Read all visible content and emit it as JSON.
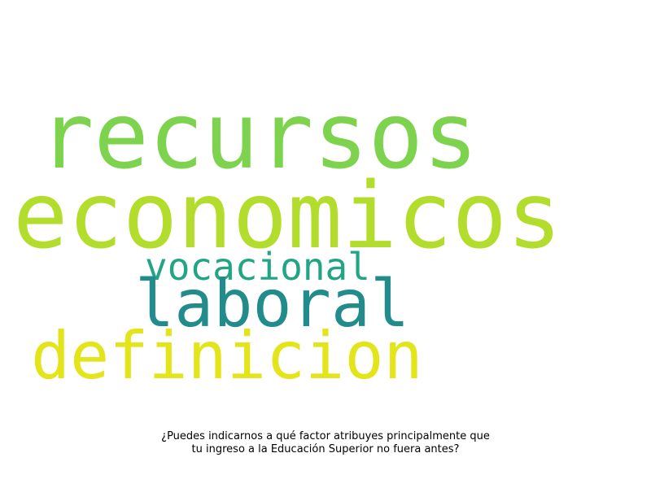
{
  "wordcloud": {
    "words": [
      {
        "text": "recursos",
        "color": "#7ed34e"
      },
      {
        "text": "economicos",
        "color": "#b2dd2c"
      },
      {
        "text": "vocacional",
        "color": "#21a585"
      },
      {
        "text": "laboral",
        "color": "#228c8d"
      },
      {
        "text": "definicion",
        "color": "#e3e419"
      }
    ]
  },
  "caption": {
    "line1": "¿Puedes indicarnos a qué factor atribuyes principalmente que",
    "line2": "tu ingreso a la Educación Superior no fuera antes?"
  }
}
